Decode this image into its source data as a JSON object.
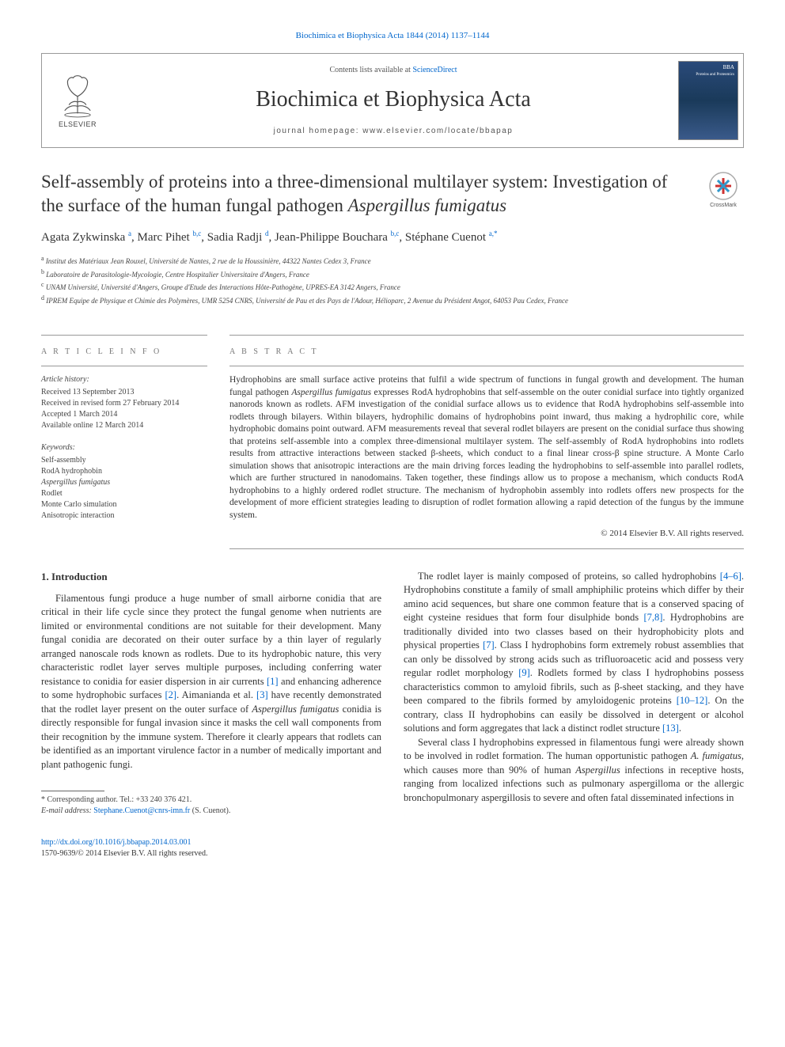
{
  "journal_ref_link": "Biochimica et Biophysica Acta 1844 (2014) 1137–1144",
  "header": {
    "contents_prefix": "Contents lists available at ",
    "contents_link": "ScienceDirect",
    "journal_name": "Biochimica et Biophysica Acta",
    "homepage_prefix": "journal homepage: ",
    "homepage_url": "www.elsevier.com/locate/bbapap",
    "elsevier_label": "ELSEVIER",
    "cover_label_line1": "BBA",
    "cover_label_line2": "Proteins and Proteomics"
  },
  "title": {
    "line1": "Self-assembly of proteins into a three-dimensional multilayer system: Investigation of the surface of the human fungal pathogen ",
    "line2_italic": "Aspergillus fumigatus"
  },
  "crossmark_label": "CrossMark",
  "authors_html": "Agata Zykwinska <sup>a</sup>, Marc Pihet <sup>b,c</sup>, Sadia Radji <sup>d</sup>, Jean-Philippe Bouchara <sup>b,c</sup>, Stéphane Cuenot <sup>a,*</sup>",
  "affiliations": [
    {
      "sup": "a",
      "text": "Institut des Matériaux Jean Rouxel, Université de Nantes, 2 rue de la Houssinière, 44322 Nantes Cedex 3, France"
    },
    {
      "sup": "b",
      "text": "Laboratoire de Parasitologie-Mycologie, Centre Hospitalier Universitaire d'Angers, France"
    },
    {
      "sup": "c",
      "text": "UNAM Université, Université d'Angers, Groupe d'Etude des Interactions Hôte-Pathogène, UPRES-EA 3142 Angers, France"
    },
    {
      "sup": "d",
      "text": "IPREM Equipe de Physique et Chimie des Polymères, UMR 5254 CNRS, Université de Pau et des Pays de l'Adour, Hélioparc, 2 Avenue du Président Angot, 64053 Pau Cedex, France"
    }
  ],
  "info": {
    "article_info_heading": "A R T I C L E   I N F O",
    "history_heading": "Article history:",
    "history": [
      "Received 13 September 2013",
      "Received in revised form 27 February 2014",
      "Accepted 1 March 2014",
      "Available online 12 March 2014"
    ],
    "keywords_heading": "Keywords:",
    "keywords": [
      "Self-assembly",
      "RodA hydrophobin",
      "Aspergillus fumigatus",
      "Rodlet",
      "Monte Carlo simulation",
      "Anisotropic interaction"
    ],
    "keywords_italic_indices": [
      2
    ]
  },
  "abstract": {
    "heading": "A B S T R A C T",
    "text": "Hydrophobins are small surface active proteins that fulfil a wide spectrum of functions in fungal growth and development. The human fungal pathogen Aspergillus fumigatus expresses RodA hydrophobins that self-assemble on the outer conidial surface into tightly organized nanorods known as rodlets. AFM investigation of the conidial surface allows us to evidence that RodA hydrophobins self-assemble into rodlets through bilayers. Within bilayers, hydrophilic domains of hydrophobins point inward, thus making a hydrophilic core, while hydrophobic domains point outward. AFM measurements reveal that several rodlet bilayers are present on the conidial surface thus showing that proteins self-assemble into a complex three-dimensional multilayer system. The self-assembly of RodA hydrophobins into rodlets results from attractive interactions between stacked β-sheets, which conduct to a final linear cross-β spine structure. A Monte Carlo simulation shows that anisotropic interactions are the main driving forces leading the hydrophobins to self-assemble into parallel rodlets, which are further structured in nanodomains. Taken together, these findings allow us to propose a mechanism, which conducts RodA hydrophobins to a highly ordered rodlet structure. The mechanism of hydrophobin assembly into rodlets offers new prospects for the development of more efficient strategies leading to disruption of rodlet formation allowing a rapid detection of the fungus by the immune system.",
    "copyright": "© 2014 Elsevier B.V. All rights reserved."
  },
  "body": {
    "section_heading": "1. Introduction",
    "col1_p1": "Filamentous fungi produce a huge number of small airborne conidia that are critical in their life cycle since they protect the fungal genome when nutrients are limited or environmental conditions are not suitable for their development. Many fungal conidia are decorated on their outer surface by a thin layer of regularly arranged nanoscale rods known as rodlets. Due to its hydrophobic nature, this very characteristic rodlet layer serves multiple purposes, including conferring water resistance to conidia for easier dispersion in air currents [1] and enhancing adherence to some hydrophobic surfaces [2]. Aimanianda et al. [3] have recently demonstrated that the rodlet layer present on the outer surface of Aspergillus fumigatus conidia is directly responsible for fungal invasion since it masks the cell wall components from their recognition by the immune system. Therefore it clearly appears that rodlets can be identified as an important virulence factor in a number of medically important and plant pathogenic fungi.",
    "col2_p1": "The rodlet layer is mainly composed of proteins, so called hydrophobins [4–6]. Hydrophobins constitute a family of small amphiphilic proteins which differ by their amino acid sequences, but share one common feature that is a conserved spacing of eight cysteine residues that form four disulphide bonds [7,8]. Hydrophobins are traditionally divided into two classes based on their hydrophobicity plots and physical properties [7]. Class I hydrophobins form extremely robust assemblies that can only be dissolved by strong acids such as trifluoroacetic acid and possess very regular rodlet morphology [9]. Rodlets formed by class I hydrophobins possess characteristics common to amyloid fibrils, such as β-sheet stacking, and they have been compared to the fibrils formed by amyloidogenic proteins [10–12]. On the contrary, class II hydrophobins can easily be dissolved in detergent or alcohol solutions and form aggregates that lack a distinct rodlet structure [13].",
    "col2_p2": "Several class I hydrophobins expressed in filamentous fungi were already shown to be involved in rodlet formation. The human opportunistic pathogen A. fumigatus, which causes more than 90% of human Aspergillus infections in receptive hosts, ranging from localized infections such as pulmonary aspergilloma or the allergic bronchopulmonary aspergillosis to severe and often fatal disseminated infections in"
  },
  "footnote": {
    "corr": "* Corresponding author. Tel.: +33 240 376 421.",
    "email_label": "E-mail address:",
    "email": "Stephane.Cuenot@cnrs-imn.fr",
    "email_person": "(S. Cuenot)."
  },
  "footer": {
    "doi": "http://dx.doi.org/10.1016/j.bbapap.2014.03.001",
    "issn_line": "1570-9639/© 2014 Elsevier B.V. All rights reserved."
  },
  "colors": {
    "link": "#0066cc",
    "text": "#333333",
    "border": "#999999",
    "muted": "#777777"
  }
}
